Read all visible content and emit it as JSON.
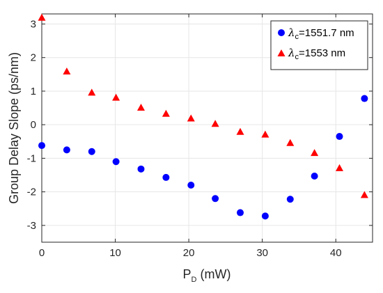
{
  "chart_data": {
    "type": "scatter",
    "xlabel": {
      "main": "P",
      "sub": "D",
      "rest": " (mW)"
    },
    "ylabel": "Group Delay Slope (ps/nm)",
    "xlim": [
      0,
      45
    ],
    "ylim": [
      -3.5,
      3.3
    ],
    "xticks": [
      0,
      10,
      20,
      30,
      40
    ],
    "yticks": [
      -3,
      -2,
      -1,
      0,
      1,
      2,
      3
    ],
    "grid": true,
    "legend_position": "top-right",
    "series": [
      {
        "name": {
          "greek": "λ",
          "sub": "c",
          "rest": "=1551.7 nm"
        },
        "marker": "circle",
        "color": "#0000ff",
        "x": [
          0,
          3.4,
          6.8,
          10.1,
          13.5,
          16.9,
          20.3,
          23.6,
          27.0,
          30.4,
          33.8,
          37.1,
          40.5,
          43.9
        ],
        "y": [
          -0.62,
          -0.75,
          -0.8,
          -1.1,
          -1.32,
          -1.57,
          -1.8,
          -2.2,
          -2.62,
          -2.72,
          -2.22,
          -1.53,
          -0.35,
          0.78
        ]
      },
      {
        "name": {
          "greek": "λ",
          "sub": "c",
          "rest": "=1553 nm"
        },
        "marker": "triangle",
        "color": "#ff0000",
        "x": [
          0,
          3.4,
          6.8,
          10.1,
          13.5,
          16.9,
          20.3,
          23.6,
          27.0,
          30.4,
          33.8,
          37.1,
          40.5,
          43.9
        ],
        "y": [
          3.18,
          1.58,
          0.95,
          0.8,
          0.5,
          0.32,
          0.18,
          0.02,
          -0.22,
          -0.3,
          -0.55,
          -0.85,
          -1.3,
          -2.1
        ]
      }
    ]
  }
}
